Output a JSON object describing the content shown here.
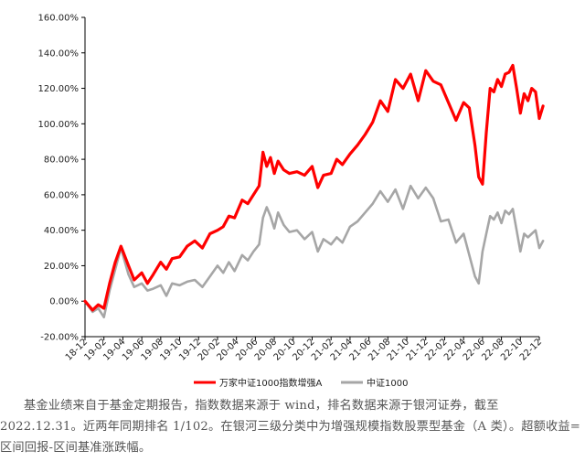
{
  "caption": "基金业绩来自于基金定期报告，指数数据来源于 wind，排名数据来源于银河证券，截至 2022.12.31。近两年同期排名 1/102。在银河三级分类中为增强规模指数股票型基金（A 类）。超额收益=区间回报-区间基准涨跌幅。",
  "chart_data": {
    "type": "line",
    "ylim": [
      -0.2,
      1.6
    ],
    "y_ticks": [
      -0.2,
      0.0,
      0.2,
      0.4,
      0.6,
      0.8,
      1.0,
      1.2,
      1.4,
      1.6
    ],
    "y_tick_labels": [
      "-20.00%",
      "0.00%",
      "20.00%",
      "40.00%",
      "60.00%",
      "80.00%",
      "100.00%",
      "120.00%",
      "140.00%",
      "160.00%"
    ],
    "x_tick_labels": [
      "18-12",
      "19-02",
      "19-04",
      "19-06",
      "19-08",
      "19-10",
      "19-12",
      "20-02",
      "20-04",
      "20-06",
      "20-08",
      "20-10",
      "20-12",
      "21-02",
      "21-04",
      "21-06",
      "21-08",
      "21-10",
      "21-12",
      "22-02",
      "22-04",
      "22-06",
      "22-08",
      "22-10",
      "22-12"
    ],
    "grid": false,
    "legend_position": "bottom",
    "series": [
      {
        "name": "万家中证1000指数增强A",
        "color": "#ff0000",
        "x": [
          0,
          0.4,
          0.7,
          1.0,
          1.3,
          1.6,
          1.9,
          2.3,
          2.6,
          3.0,
          3.3,
          3.6,
          4.0,
          4.3,
          4.6,
          5.0,
          5.4,
          5.8,
          6.2,
          6.6,
          7.0,
          7.3,
          7.6,
          7.9,
          8.3,
          8.6,
          8.9,
          9.2,
          9.4,
          9.6,
          9.8,
          10.0,
          10.2,
          10.5,
          10.8,
          11.2,
          11.6,
          12.0,
          12.3,
          12.6,
          13.0,
          13.3,
          13.6,
          14.0,
          14.4,
          14.8,
          15.2,
          15.6,
          16.0,
          16.4,
          16.8,
          17.2,
          17.6,
          18.0,
          18.4,
          18.8,
          19.2,
          19.6,
          20.0,
          20.3,
          20.6,
          20.8,
          21.0,
          21.2,
          21.4,
          21.6,
          21.8,
          22.0,
          22.2,
          22.4,
          22.6,
          22.8,
          23.0,
          23.2,
          23.4,
          23.6,
          23.8,
          24.0,
          24.2
        ],
        "values": [
          0.0,
          -0.05,
          -0.02,
          -0.04,
          0.1,
          0.22,
          0.31,
          0.2,
          0.12,
          0.16,
          0.1,
          0.15,
          0.22,
          0.18,
          0.24,
          0.25,
          0.31,
          0.34,
          0.3,
          0.38,
          0.4,
          0.42,
          0.48,
          0.47,
          0.57,
          0.55,
          0.6,
          0.65,
          0.84,
          0.76,
          0.81,
          0.72,
          0.79,
          0.74,
          0.72,
          0.73,
          0.71,
          0.76,
          0.64,
          0.71,
          0.72,
          0.8,
          0.77,
          0.83,
          0.88,
          0.94,
          1.01,
          1.13,
          1.07,
          1.25,
          1.2,
          1.28,
          1.13,
          1.3,
          1.24,
          1.22,
          1.12,
          1.02,
          1.12,
          1.09,
          0.88,
          0.7,
          0.66,
          0.95,
          1.2,
          1.18,
          1.25,
          1.21,
          1.28,
          1.29,
          1.33,
          1.2,
          1.06,
          1.17,
          1.13,
          1.2,
          1.18,
          1.03,
          1.1
        ]
      },
      {
        "name": "中证1000",
        "color": "#a6a6a6",
        "x": [
          0,
          0.4,
          0.7,
          1.0,
          1.3,
          1.6,
          1.9,
          2.3,
          2.6,
          3.0,
          3.3,
          3.6,
          4.0,
          4.3,
          4.6,
          5.0,
          5.4,
          5.8,
          6.2,
          6.6,
          7.0,
          7.3,
          7.6,
          7.9,
          8.3,
          8.6,
          8.9,
          9.2,
          9.4,
          9.6,
          9.8,
          10.0,
          10.2,
          10.5,
          10.8,
          11.2,
          11.6,
          12.0,
          12.3,
          12.6,
          13.0,
          13.3,
          13.6,
          14.0,
          14.4,
          14.8,
          15.2,
          15.6,
          16.0,
          16.4,
          16.8,
          17.2,
          17.6,
          18.0,
          18.4,
          18.8,
          19.2,
          19.6,
          20.0,
          20.3,
          20.6,
          20.8,
          21.0,
          21.2,
          21.4,
          21.6,
          21.8,
          22.0,
          22.2,
          22.4,
          22.6,
          22.8,
          23.0,
          23.2,
          23.4,
          23.6,
          23.8,
          24.0,
          24.2
        ],
        "values": [
          0.0,
          -0.06,
          -0.04,
          -0.09,
          0.06,
          0.18,
          0.3,
          0.15,
          0.08,
          0.1,
          0.06,
          0.07,
          0.09,
          0.03,
          0.1,
          0.09,
          0.11,
          0.12,
          0.08,
          0.14,
          0.2,
          0.16,
          0.22,
          0.17,
          0.26,
          0.23,
          0.28,
          0.32,
          0.47,
          0.53,
          0.48,
          0.41,
          0.5,
          0.43,
          0.39,
          0.4,
          0.35,
          0.39,
          0.28,
          0.35,
          0.32,
          0.36,
          0.33,
          0.42,
          0.45,
          0.5,
          0.55,
          0.62,
          0.56,
          0.63,
          0.52,
          0.65,
          0.58,
          0.64,
          0.58,
          0.45,
          0.46,
          0.33,
          0.38,
          0.26,
          0.14,
          0.1,
          0.28,
          0.38,
          0.48,
          0.46,
          0.5,
          0.44,
          0.51,
          0.49,
          0.52,
          0.4,
          0.28,
          0.38,
          0.36,
          0.38,
          0.4,
          0.3,
          0.34
        ]
      }
    ]
  }
}
